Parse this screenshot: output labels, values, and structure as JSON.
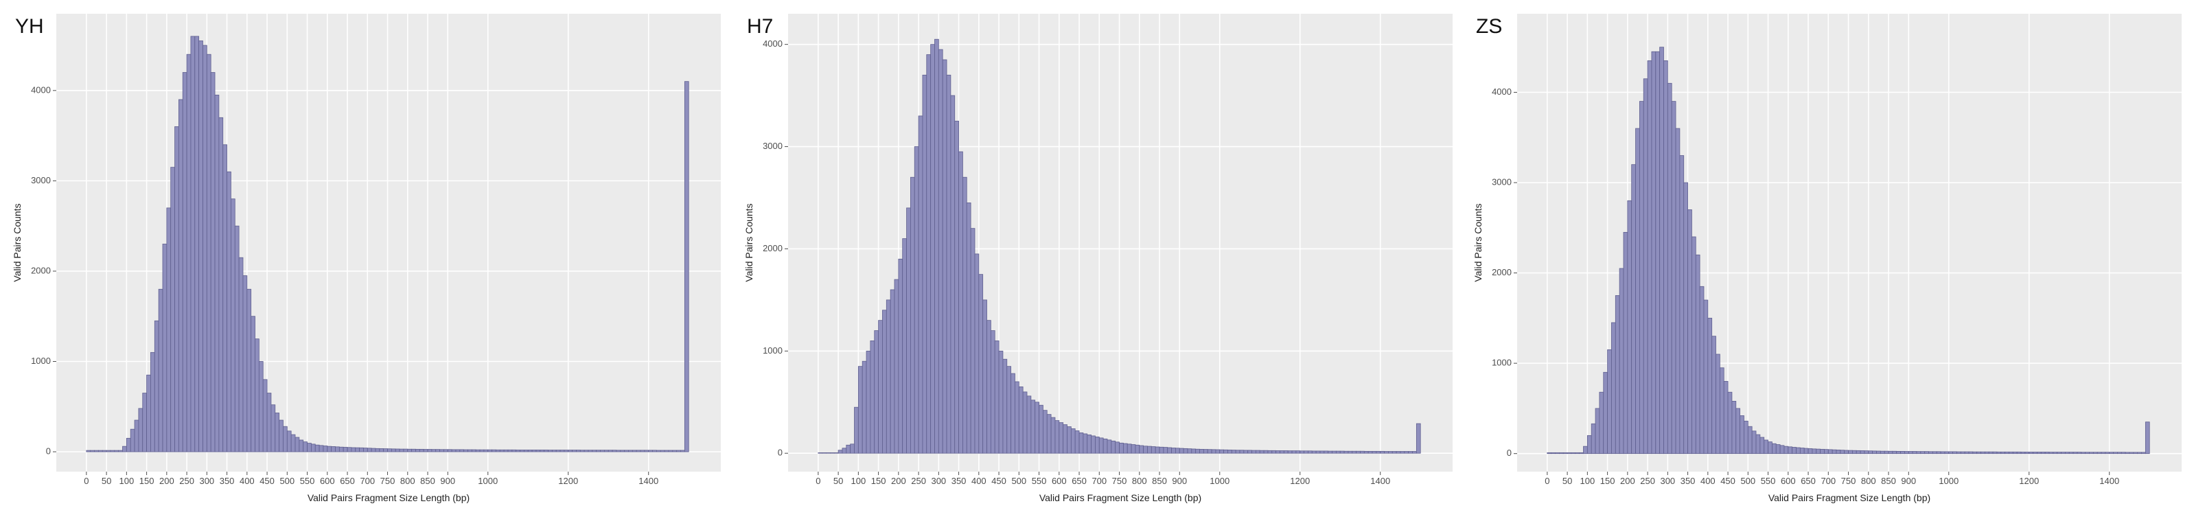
{
  "chart_data": [
    {
      "type": "histogram",
      "title": "YH",
      "xlabel": "Valid Pairs Fragment Size Length (bp)",
      "ylabel": "Valid Pairs Counts",
      "bins": [
        0,
        10,
        20,
        30,
        40,
        50,
        60,
        70,
        80,
        90,
        100,
        110,
        120,
        130,
        140,
        150,
        160,
        170,
        180,
        190,
        200,
        210,
        220,
        230,
        240,
        250,
        260,
        270,
        280,
        290,
        300,
        310,
        320,
        330,
        340,
        350,
        360,
        370,
        380,
        390,
        400,
        410,
        420,
        430,
        440,
        450,
        460,
        470,
        480,
        490,
        500,
        510,
        520,
        530,
        540,
        550,
        560,
        570,
        580,
        590,
        600,
        610,
        620,
        630,
        640,
        650,
        660,
        670,
        680,
        690,
        700,
        710,
        720,
        730,
        740,
        750,
        760,
        770,
        780,
        790,
        800,
        810,
        820,
        830,
        840,
        850,
        860,
        870,
        880,
        890,
        900,
        910,
        920,
        930,
        940,
        950,
        960,
        970,
        980,
        990,
        1000,
        1010,
        1020,
        1030,
        1040,
        1050,
        1060,
        1070,
        1080,
        1090,
        1100,
        1110,
        1120,
        1130,
        1140,
        1150,
        1160,
        1170,
        1180,
        1190,
        1200,
        1210,
        1220,
        1230,
        1240,
        1250,
        1260,
        1270,
        1280,
        1290,
        1300,
        1310,
        1320,
        1330,
        1340,
        1350,
        1360,
        1370,
        1380,
        1390,
        1400,
        1410,
        1420,
        1430,
        1440,
        1450,
        1460,
        1470,
        1480,
        1490,
        1500
      ],
      "counts": [
        15,
        15,
        15,
        15,
        15,
        15,
        15,
        15,
        15,
        60,
        150,
        250,
        350,
        480,
        650,
        850,
        1100,
        1450,
        1800,
        2300,
        2700,
        3150,
        3600,
        3900,
        4200,
        4400,
        4600,
        4600,
        4550,
        4500,
        4400,
        4200,
        3950,
        3700,
        3400,
        3100,
        2800,
        2500,
        2150,
        1950,
        1800,
        1500,
        1250,
        1000,
        800,
        650,
        520,
        430,
        350,
        280,
        230,
        190,
        160,
        130,
        110,
        95,
        85,
        75,
        70,
        65,
        60,
        58,
        55,
        52,
        50,
        48,
        46,
        45,
        44,
        42,
        40,
        38,
        36,
        35,
        34,
        33,
        32,
        31,
        30,
        30,
        29,
        29,
        28,
        28,
        27,
        27,
        26,
        26,
        25,
        25,
        25,
        24,
        24,
        24,
        23,
        23,
        23,
        22,
        22,
        22,
        22,
        22,
        21,
        21,
        21,
        21,
        21,
        20,
        20,
        20,
        20,
        20,
        20,
        20,
        20,
        19,
        19,
        19,
        19,
        19,
        19,
        19,
        19,
        18,
        18,
        18,
        18,
        18,
        18,
        18,
        18,
        18,
        17,
        17,
        17,
        17,
        17,
        17,
        17,
        17,
        17,
        17,
        16,
        16,
        16,
        16,
        16,
        16,
        16,
        4100
      ],
      "color": "#8e8ebd",
      "edgecolor": "#5f5f8f",
      "xlim": [
        -75,
        1580
      ],
      "ylim": [
        -220,
        4850
      ],
      "xticks": [
        0,
        50,
        100,
        150,
        200,
        250,
        300,
        350,
        400,
        450,
        500,
        550,
        600,
        650,
        700,
        750,
        800,
        850,
        900,
        1000,
        1200,
        1400
      ],
      "yticks": [
        0,
        1000,
        2000,
        3000,
        4000
      ],
      "grid": true
    },
    {
      "type": "histogram",
      "title": "H7",
      "xlabel": "Valid Pairs Fragment Size Length (bp)",
      "ylabel": "Valid Pairs Counts",
      "bins": [
        0,
        10,
        20,
        30,
        40,
        50,
        60,
        70,
        80,
        90,
        100,
        110,
        120,
        130,
        140,
        150,
        160,
        170,
        180,
        190,
        200,
        210,
        220,
        230,
        240,
        250,
        260,
        270,
        280,
        290,
        300,
        310,
        320,
        330,
        340,
        350,
        360,
        370,
        380,
        390,
        400,
        410,
        420,
        430,
        440,
        450,
        460,
        470,
        480,
        490,
        500,
        510,
        520,
        530,
        540,
        550,
        560,
        570,
        580,
        590,
        600,
        610,
        620,
        630,
        640,
        650,
        660,
        670,
        680,
        690,
        700,
        710,
        720,
        730,
        740,
        750,
        760,
        770,
        780,
        790,
        800,
        810,
        820,
        830,
        840,
        850,
        860,
        870,
        880,
        890,
        900,
        910,
        920,
        930,
        940,
        950,
        960,
        970,
        980,
        990,
        1000,
        1010,
        1020,
        1030,
        1040,
        1050,
        1060,
        1070,
        1080,
        1090,
        1100,
        1110,
        1120,
        1130,
        1140,
        1150,
        1160,
        1170,
        1180,
        1190,
        1200,
        1210,
        1220,
        1230,
        1240,
        1250,
        1260,
        1270,
        1280,
        1290,
        1300,
        1310,
        1320,
        1330,
        1340,
        1350,
        1360,
        1370,
        1380,
        1390,
        1400,
        1410,
        1420,
        1430,
        1440,
        1450,
        1460,
        1470,
        1480,
        1490,
        1500
      ],
      "counts": [
        5,
        5,
        5,
        5,
        5,
        30,
        50,
        80,
        90,
        450,
        850,
        900,
        1000,
        1100,
        1200,
        1300,
        1400,
        1500,
        1600,
        1700,
        1900,
        2100,
        2400,
        2700,
        3000,
        3300,
        3700,
        3900,
        4000,
        4050,
        3950,
        3850,
        3700,
        3500,
        3250,
        2950,
        2700,
        2450,
        2200,
        1950,
        1750,
        1500,
        1300,
        1200,
        1100,
        1000,
        920,
        850,
        780,
        700,
        650,
        600,
        560,
        520,
        500,
        470,
        420,
        380,
        350,
        320,
        300,
        280,
        260,
        240,
        220,
        200,
        190,
        180,
        170,
        160,
        150,
        140,
        130,
        120,
        110,
        100,
        95,
        90,
        85,
        80,
        75,
        70,
        68,
        65,
        62,
        60,
        58,
        55,
        52,
        50,
        48,
        46,
        44,
        42,
        40,
        39,
        38,
        37,
        36,
        35,
        34,
        33,
        32,
        31,
        30,
        30,
        29,
        29,
        28,
        28,
        27,
        27,
        26,
        26,
        25,
        25,
        25,
        24,
        24,
        24,
        23,
        23,
        23,
        22,
        22,
        22,
        22,
        21,
        21,
        21,
        21,
        20,
        20,
        20,
        20,
        20,
        19,
        19,
        19,
        19,
        19,
        18,
        18,
        18,
        18,
        18,
        18,
        18,
        18,
        290
      ],
      "color": "#8e8ebd",
      "edgecolor": "#5f5f8f",
      "xlim": [
        -75,
        1580
      ],
      "ylim": [
        -180,
        4300
      ],
      "xticks": [
        0,
        50,
        100,
        150,
        200,
        250,
        300,
        350,
        400,
        450,
        500,
        550,
        600,
        650,
        700,
        750,
        800,
        850,
        900,
        1000,
        1200,
        1400
      ],
      "yticks": [
        0,
        1000,
        2000,
        3000,
        4000
      ],
      "grid": true
    },
    {
      "type": "histogram",
      "title": "ZS",
      "xlabel": "Valid Pairs Fragment Size Length (bp)",
      "ylabel": "Valid Pairs Counts",
      "bins": [
        0,
        10,
        20,
        30,
        40,
        50,
        60,
        70,
        80,
        90,
        100,
        110,
        120,
        130,
        140,
        150,
        160,
        170,
        180,
        190,
        200,
        210,
        220,
        230,
        240,
        250,
        260,
        270,
        280,
        290,
        300,
        310,
        320,
        330,
        340,
        350,
        360,
        370,
        380,
        390,
        400,
        410,
        420,
        430,
        440,
        450,
        460,
        470,
        480,
        490,
        500,
        510,
        520,
        530,
        540,
        550,
        560,
        570,
        580,
        590,
        600,
        610,
        620,
        630,
        640,
        650,
        660,
        670,
        680,
        690,
        700,
        710,
        720,
        730,
        740,
        750,
        760,
        770,
        780,
        790,
        800,
        810,
        820,
        830,
        840,
        850,
        860,
        870,
        880,
        890,
        900,
        910,
        920,
        930,
        940,
        950,
        960,
        970,
        980,
        990,
        1000,
        1010,
        1020,
        1030,
        1040,
        1050,
        1060,
        1070,
        1080,
        1090,
        1100,
        1110,
        1120,
        1130,
        1140,
        1150,
        1160,
        1170,
        1180,
        1190,
        1200,
        1210,
        1220,
        1230,
        1240,
        1250,
        1260,
        1270,
        1280,
        1290,
        1300,
        1310,
        1320,
        1330,
        1340,
        1350,
        1360,
        1370,
        1380,
        1390,
        1400,
        1410,
        1420,
        1430,
        1440,
        1450,
        1460,
        1470,
        1480,
        1490,
        1500
      ],
      "counts": [
        10,
        10,
        10,
        10,
        10,
        10,
        10,
        10,
        10,
        80,
        200,
        330,
        500,
        680,
        900,
        1150,
        1450,
        1750,
        2050,
        2450,
        2800,
        3200,
        3600,
        3900,
        4150,
        4350,
        4450,
        4450,
        4500,
        4350,
        4100,
        3900,
        3600,
        3300,
        3000,
        2700,
        2400,
        2200,
        1850,
        1700,
        1500,
        1300,
        1100,
        950,
        800,
        680,
        580,
        500,
        420,
        360,
        300,
        250,
        210,
        180,
        150,
        130,
        110,
        100,
        90,
        80,
        75,
        70,
        66,
        62,
        58,
        55,
        52,
        50,
        48,
        46,
        44,
        42,
        40,
        38,
        36,
        35,
        34,
        33,
        32,
        31,
        30,
        29,
        28,
        27,
        27,
        26,
        26,
        25,
        25,
        24,
        24,
        24,
        23,
        23,
        23,
        22,
        22,
        22,
        21,
        21,
        21,
        21,
        20,
        20,
        20,
        20,
        19,
        19,
        19,
        19,
        19,
        19,
        18,
        18,
        18,
        18,
        18,
        18,
        17,
        17,
        17,
        17,
        17,
        17,
        17,
        16,
        16,
        16,
        16,
        16,
        16,
        16,
        16,
        15,
        15,
        15,
        15,
        15,
        15,
        15,
        15,
        15,
        15,
        15,
        14,
        14,
        14,
        14,
        14,
        350
      ],
      "color": "#8e8ebd",
      "edgecolor": "#5f5f8f",
      "xlim": [
        -75,
        1580
      ],
      "ylim": [
        -200,
        4870
      ],
      "xticks": [
        0,
        50,
        100,
        150,
        200,
        250,
        300,
        350,
        400,
        450,
        500,
        550,
        600,
        650,
        700,
        750,
        800,
        850,
        900,
        1000,
        1200,
        1400
      ],
      "yticks": [
        0,
        1000,
        2000,
        3000,
        4000
      ],
      "grid": true
    }
  ]
}
